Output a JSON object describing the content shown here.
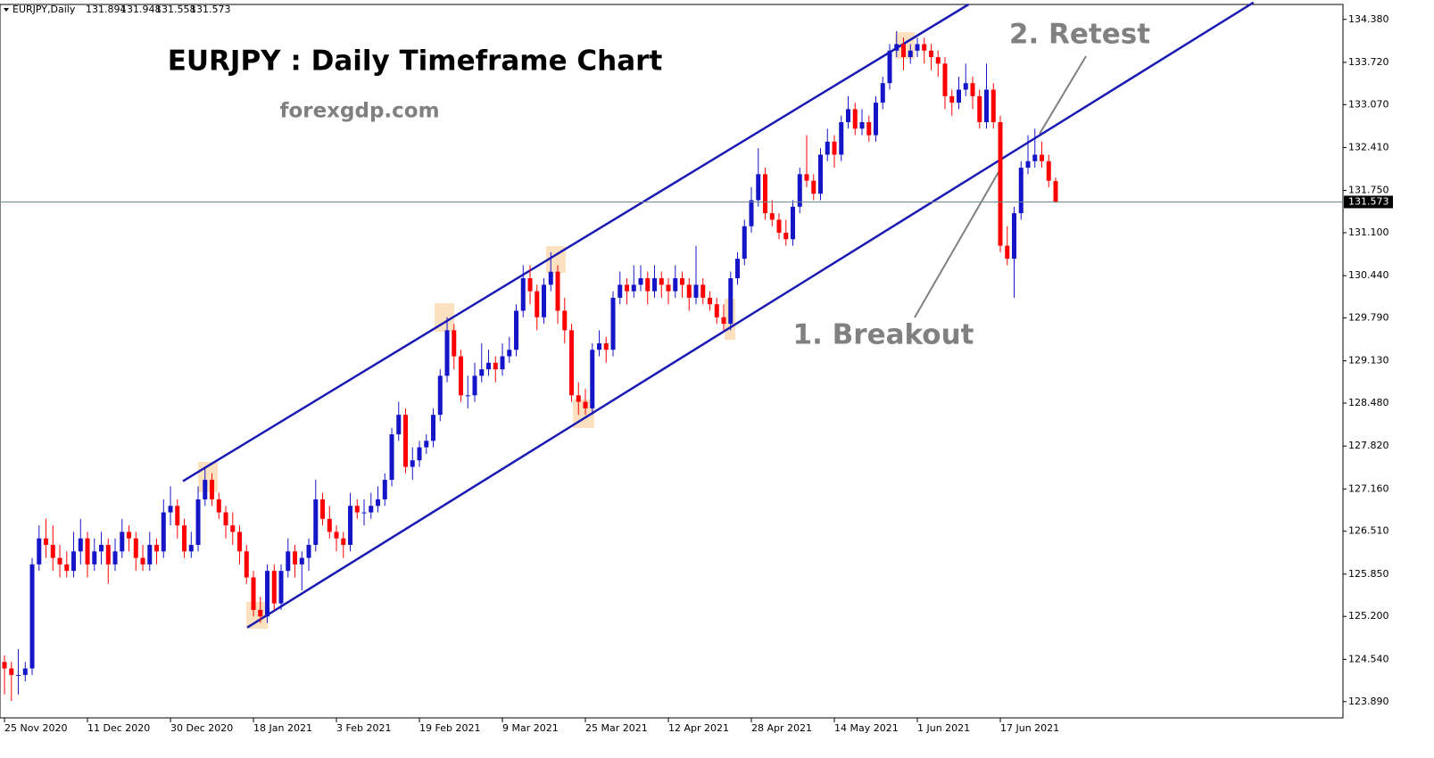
{
  "chart_data": {
    "type": "candlestick",
    "symbol": "EURJPY,Daily",
    "title": "EURJPY : Daily Timeframe Chart",
    "subtitle": "forexgdp.com",
    "up_color": "#1515c8",
    "down_color": "#ff0000",
    "trendline_color": "#1a1ab4",
    "annotations": [
      {
        "text": "1. Breakout"
      },
      {
        "text": "2. Retest"
      }
    ],
    "trendlines": [
      {
        "x": [
          25.8,
          139.4
        ],
        "y": [
          127.28,
          134.61
        ]
      },
      {
        "x": [
          35.1,
          180.6
        ],
        "y": [
          125.03,
          134.64
        ]
      }
    ],
    "xlim": [
      -0.65,
      193.55
    ],
    "ylim": [
      123.64,
      134.61
    ],
    "xticks": [
      {
        "value": 0,
        "label": "25 Nov 2020"
      },
      {
        "value": 12,
        "label": "11 Dec 2020"
      },
      {
        "value": 24,
        "label": "30 Dec 2020"
      },
      {
        "value": 36,
        "label": "18 Jan 2021"
      },
      {
        "value": 48,
        "label": "3 Feb 2021"
      },
      {
        "value": 60,
        "label": "19 Feb 2021"
      },
      {
        "value": 72,
        "label": "9 Mar 2021"
      },
      {
        "value": 84,
        "label": "25 Mar 2021"
      },
      {
        "value": 96,
        "label": "12 Apr 2021"
      },
      {
        "value": 108,
        "label": "28 Apr 2021"
      },
      {
        "value": 120,
        "label": "14 May 2021"
      },
      {
        "value": 132,
        "label": "1 Jun 2021"
      },
      {
        "value": 144,
        "label": "17 Jun 2021"
      }
    ],
    "yticks": [
      {
        "value": 134.38,
        "label": "134.380"
      },
      {
        "value": 133.72,
        "label": "133.720"
      },
      {
        "value": 133.07,
        "label": "133.070"
      },
      {
        "value": 132.41,
        "label": "132.410"
      },
      {
        "value": 131.75,
        "label": "131.750"
      },
      {
        "value": 131.1,
        "label": "131.100"
      },
      {
        "value": 130.44,
        "label": "130.440"
      },
      {
        "value": 129.79,
        "label": "129.790"
      },
      {
        "value": 129.13,
        "label": "129.130"
      },
      {
        "value": 128.48,
        "label": "128.480"
      },
      {
        "value": 127.82,
        "label": "127.820"
      },
      {
        "value": 127.16,
        "label": "127.160"
      },
      {
        "value": 126.51,
        "label": "126.510"
      },
      {
        "value": 125.85,
        "label": "125.850"
      },
      {
        "value": 125.2,
        "label": "125.200"
      },
      {
        "value": 124.54,
        "label": "124.540"
      },
      {
        "value": 123.89,
        "label": "123.890"
      }
    ],
    "candles": [
      [
        124.5,
        124.6,
        124.0,
        124.4
      ],
      [
        124.4,
        124.5,
        123.9,
        124.3
      ],
      [
        124.3,
        124.7,
        124.0,
        124.3
      ],
      [
        124.3,
        124.5,
        124.2,
        124.4
      ],
      [
        124.4,
        126.1,
        124.3,
        126.0
      ],
      [
        126.0,
        126.6,
        125.9,
        126.4
      ],
      [
        126.4,
        126.7,
        126.1,
        126.3
      ],
      [
        126.3,
        126.6,
        125.9,
        126.1
      ],
      [
        126.1,
        126.3,
        125.8,
        126.0
      ],
      [
        126.0,
        126.2,
        125.8,
        125.9
      ],
      [
        125.9,
        126.5,
        125.8,
        126.2
      ],
      [
        126.2,
        126.7,
        126.0,
        126.4
      ],
      [
        126.4,
        126.5,
        125.8,
        126.0
      ],
      [
        126.0,
        126.4,
        125.9,
        126.2
      ],
      [
        126.2,
        126.5,
        126.0,
        126.3
      ],
      [
        126.3,
        126.4,
        125.7,
        126.0
      ],
      [
        126.0,
        126.4,
        125.9,
        126.2
      ],
      [
        126.2,
        126.7,
        126.1,
        126.5
      ],
      [
        126.5,
        126.6,
        126.2,
        126.4
      ],
      [
        126.4,
        126.5,
        125.9,
        126.1
      ],
      [
        126.1,
        126.3,
        125.9,
        126.0
      ],
      [
        126.0,
        126.5,
        125.9,
        126.3
      ],
      [
        126.3,
        126.4,
        126.0,
        126.2
      ],
      [
        126.2,
        127.0,
        126.1,
        126.8
      ],
      [
        126.8,
        127.2,
        126.6,
        126.9
      ],
      [
        126.9,
        127.0,
        126.4,
        126.6
      ],
      [
        126.6,
        126.7,
        126.1,
        126.2
      ],
      [
        126.2,
        126.5,
        126.1,
        126.3
      ],
      [
        126.3,
        127.2,
        126.2,
        127.0
      ],
      [
        127.0,
        127.5,
        126.9,
        127.3
      ],
      [
        127.3,
        127.4,
        126.9,
        127.0
      ],
      [
        127.0,
        127.1,
        126.7,
        126.8
      ],
      [
        126.8,
        126.9,
        126.4,
        126.6
      ],
      [
        126.6,
        126.8,
        126.3,
        126.5
      ],
      [
        126.5,
        126.6,
        126.0,
        126.2
      ],
      [
        126.2,
        126.3,
        125.7,
        125.8
      ],
      [
        125.8,
        125.9,
        125.2,
        125.3
      ],
      [
        125.3,
        125.5,
        125.1,
        125.2
      ],
      [
        125.2,
        126.0,
        125.1,
        125.9
      ],
      [
        125.9,
        126.0,
        125.3,
        125.4
      ],
      [
        125.4,
        126.0,
        125.3,
        125.9
      ],
      [
        125.9,
        126.4,
        125.8,
        126.2
      ],
      [
        126.2,
        126.3,
        125.8,
        126.0
      ],
      [
        126.0,
        126.2,
        125.6,
        126.1
      ],
      [
        126.1,
        126.4,
        125.9,
        126.3
      ],
      [
        126.3,
        127.3,
        126.2,
        127.0
      ],
      [
        127.0,
        127.1,
        126.6,
        126.7
      ],
      [
        126.7,
        126.9,
        126.4,
        126.5
      ],
      [
        126.5,
        126.6,
        126.2,
        126.4
      ],
      [
        126.4,
        126.5,
        126.1,
        126.3
      ],
      [
        126.3,
        127.1,
        126.2,
        126.9
      ],
      [
        126.9,
        127.0,
        126.7,
        126.8
      ],
      [
        126.8,
        127.0,
        126.6,
        126.8
      ],
      [
        126.8,
        127.1,
        126.7,
        126.9
      ],
      [
        126.9,
        127.2,
        126.8,
        127.0
      ],
      [
        127.0,
        127.4,
        126.9,
        127.3
      ],
      [
        127.3,
        128.1,
        127.2,
        128.0
      ],
      [
        128.0,
        128.5,
        127.9,
        128.3
      ],
      [
        128.3,
        128.4,
        127.4,
        127.5
      ],
      [
        127.5,
        127.8,
        127.3,
        127.6
      ],
      [
        127.6,
        127.9,
        127.5,
        127.8
      ],
      [
        127.8,
        128.0,
        127.7,
        127.9
      ],
      [
        127.9,
        128.4,
        127.8,
        128.3
      ],
      [
        128.3,
        129.0,
        128.2,
        128.9
      ],
      [
        128.9,
        129.8,
        128.8,
        129.6
      ],
      [
        129.6,
        129.7,
        129.0,
        129.2
      ],
      [
        129.2,
        129.3,
        128.5,
        128.6
      ],
      [
        128.6,
        128.9,
        128.4,
        128.6
      ],
      [
        128.6,
        129.1,
        128.5,
        128.9
      ],
      [
        128.9,
        129.4,
        128.8,
        129.0
      ],
      [
        129.0,
        129.3,
        128.9,
        129.1
      ],
      [
        129.1,
        129.2,
        128.8,
        129.0
      ],
      [
        129.0,
        129.4,
        128.9,
        129.2
      ],
      [
        129.2,
        129.5,
        129.1,
        129.3
      ],
      [
        129.3,
        130.0,
        129.2,
        129.9
      ],
      [
        129.9,
        130.6,
        129.8,
        130.4
      ],
      [
        130.4,
        130.6,
        130.0,
        130.2
      ],
      [
        130.2,
        130.3,
        129.6,
        129.8
      ],
      [
        129.8,
        130.4,
        129.7,
        130.3
      ],
      [
        130.3,
        130.8,
        130.2,
        130.5
      ],
      [
        130.5,
        130.6,
        129.7,
        129.9
      ],
      [
        129.9,
        130.1,
        129.4,
        129.6
      ],
      [
        129.6,
        129.7,
        128.5,
        128.6
      ],
      [
        128.6,
        128.8,
        128.3,
        128.5
      ],
      [
        128.5,
        128.7,
        128.3,
        128.4
      ],
      [
        128.4,
        129.4,
        128.3,
        129.3
      ],
      [
        129.3,
        129.6,
        129.2,
        129.4
      ],
      [
        129.4,
        129.5,
        129.1,
        129.3
      ],
      [
        129.3,
        130.2,
        129.2,
        130.1
      ],
      [
        130.1,
        130.5,
        130.0,
        130.3
      ],
      [
        130.3,
        130.4,
        130.0,
        130.2
      ],
      [
        130.2,
        130.6,
        130.1,
        130.3
      ],
      [
        130.3,
        130.6,
        130.2,
        130.4
      ],
      [
        130.4,
        130.5,
        130.0,
        130.2
      ],
      [
        130.2,
        130.6,
        130.1,
        130.4
      ],
      [
        130.4,
        130.5,
        130.1,
        130.3
      ],
      [
        130.3,
        130.4,
        130.0,
        130.2
      ],
      [
        130.2,
        130.6,
        130.1,
        130.4
      ],
      [
        130.4,
        130.5,
        130.1,
        130.3
      ],
      [
        130.3,
        130.4,
        129.9,
        130.1
      ],
      [
        130.1,
        130.9,
        130.0,
        130.3
      ],
      [
        130.3,
        130.4,
        130.0,
        130.1
      ],
      [
        130.1,
        130.2,
        129.9,
        130.0
      ],
      [
        130.0,
        130.1,
        129.7,
        129.8
      ],
      [
        129.8,
        130.0,
        129.6,
        129.7
      ],
      [
        129.7,
        130.5,
        129.6,
        130.4
      ],
      [
        130.4,
        130.8,
        130.3,
        130.7
      ],
      [
        130.7,
        131.3,
        130.6,
        131.2
      ],
      [
        131.2,
        131.8,
        131.1,
        131.6
      ],
      [
        131.6,
        132.4,
        131.5,
        132.0
      ],
      [
        132.0,
        132.1,
        131.3,
        131.4
      ],
      [
        131.4,
        131.6,
        131.2,
        131.3
      ],
      [
        131.3,
        131.4,
        131.0,
        131.1
      ],
      [
        131.1,
        131.3,
        130.9,
        131.0
      ],
      [
        131.0,
        131.6,
        130.9,
        131.5
      ],
      [
        131.5,
        132.1,
        131.4,
        132.0
      ],
      [
        132.0,
        132.6,
        131.8,
        131.9
      ],
      [
        131.9,
        132.0,
        131.6,
        131.7
      ],
      [
        131.7,
        132.4,
        131.6,
        132.3
      ],
      [
        132.3,
        132.7,
        132.2,
        132.5
      ],
      [
        132.5,
        132.6,
        132.1,
        132.3
      ],
      [
        132.3,
        132.9,
        132.2,
        132.8
      ],
      [
        132.8,
        133.2,
        132.7,
        133.0
      ],
      [
        133.0,
        133.1,
        132.6,
        132.7
      ],
      [
        132.7,
        133.0,
        132.6,
        132.8
      ],
      [
        132.8,
        132.9,
        132.5,
        132.6
      ],
      [
        132.6,
        133.2,
        132.5,
        133.1
      ],
      [
        133.1,
        133.5,
        133.0,
        133.4
      ],
      [
        133.4,
        134.0,
        133.3,
        133.9
      ],
      [
        133.9,
        134.2,
        133.8,
        134.0
      ],
      [
        134.0,
        134.1,
        133.6,
        133.8
      ],
      [
        133.8,
        134.0,
        133.7,
        133.9
      ],
      [
        133.9,
        134.1,
        133.8,
        134.0
      ],
      [
        134.0,
        134.1,
        133.7,
        133.9
      ],
      [
        133.9,
        134.0,
        133.6,
        133.8
      ],
      [
        133.8,
        133.9,
        133.5,
        133.7
      ],
      [
        133.7,
        133.8,
        133.0,
        133.2
      ],
      [
        133.2,
        133.3,
        132.9,
        133.1
      ],
      [
        133.1,
        133.5,
        133.0,
        133.3
      ],
      [
        133.3,
        133.7,
        133.2,
        133.4
      ],
      [
        133.4,
        133.5,
        133.0,
        133.2
      ],
      [
        133.2,
        133.3,
        132.7,
        132.8
      ],
      [
        132.8,
        133.7,
        132.7,
        133.3
      ],
      [
        133.3,
        133.4,
        132.7,
        132.8
      ],
      [
        132.8,
        132.9,
        130.8,
        130.9
      ],
      [
        130.9,
        131.2,
        130.6,
        130.7
      ],
      [
        130.7,
        131.5,
        130.1,
        131.4
      ],
      [
        131.4,
        132.2,
        131.3,
        132.1
      ],
      [
        132.1,
        132.6,
        132.0,
        132.2
      ],
      [
        132.2,
        132.7,
        132.1,
        132.3
      ],
      [
        132.3,
        132.5,
        132.1,
        132.2
      ],
      [
        132.2,
        132.3,
        131.8,
        131.9
      ],
      [
        131.894,
        131.948,
        131.558,
        131.573
      ]
    ]
  }
}
